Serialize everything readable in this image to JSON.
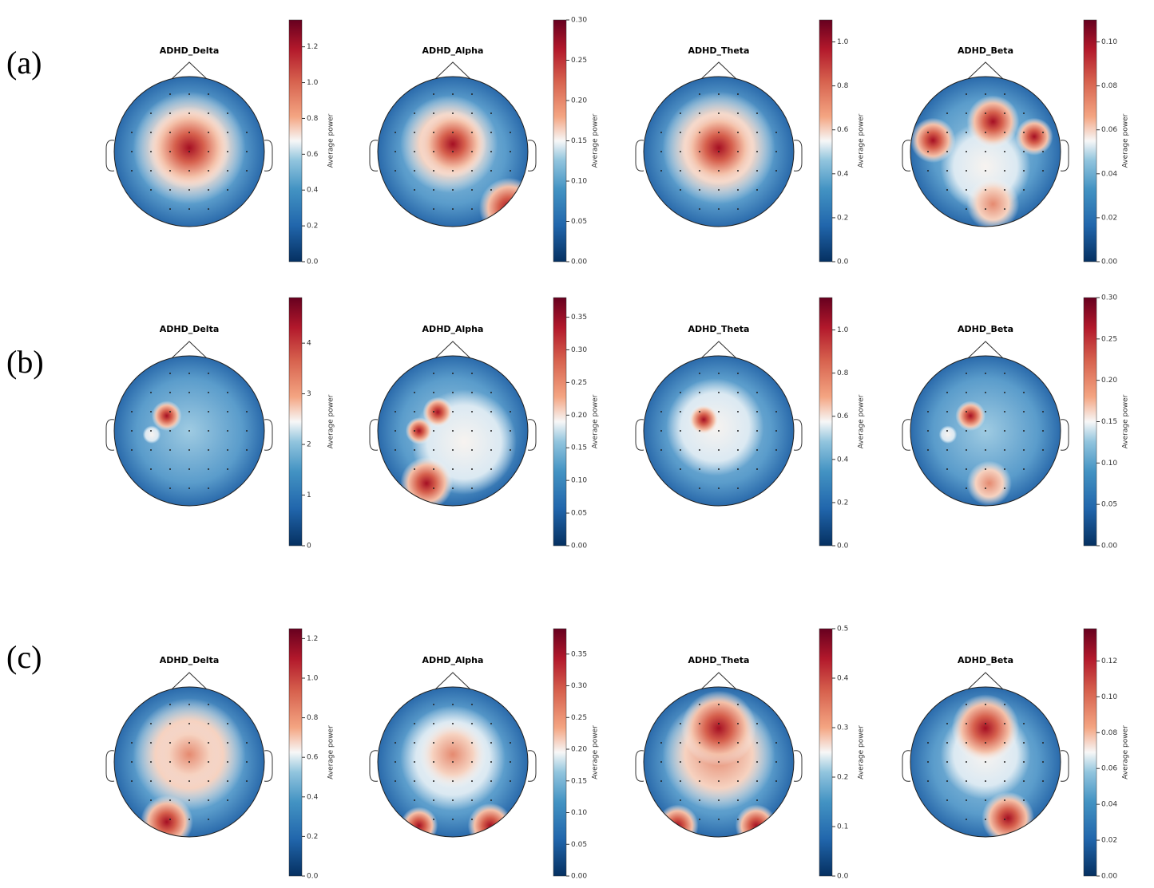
{
  "panel_labels": [
    "(a)",
    "(b)",
    "(c)"
  ],
  "chart_data": [
    {
      "type": "topomap",
      "title": "ADHD_Delta",
      "colorbar_label": "Average power",
      "ylim": [
        0,
        1.35
      ],
      "yticks": [
        {
          "value": 0,
          "label": "0.0"
        },
        0.2,
        0.4,
        0.6,
        0.8,
        {
          "value": 1,
          "label": "1.0"
        },
        1.2
      ]
    },
    {
      "type": "topomap",
      "title": "ADHD_Alpha",
      "colorbar_label": "Average power",
      "ylim": [
        0,
        0.3
      ],
      "yticks": [
        {
          "value": 0,
          "label": "0.00"
        },
        0.05,
        {
          "value": 0.1,
          "label": "0.10"
        },
        0.15,
        {
          "value": 0.2,
          "label": "0.20"
        },
        0.25,
        {
          "value": 0.3,
          "label": "0.30"
        }
      ]
    },
    {
      "type": "topomap",
      "title": "ADHD_Theta",
      "colorbar_label": "Average power",
      "ylim": [
        0,
        1.1
      ],
      "yticks": [
        {
          "value": 0,
          "label": "0.0"
        },
        0.2,
        0.4,
        0.6,
        0.8,
        {
          "value": 1,
          "label": "1.0"
        }
      ]
    },
    {
      "type": "topomap",
      "title": "ADHD_Beta",
      "colorbar_label": "Average power",
      "ylim": [
        0,
        0.11
      ],
      "yticks": [
        {
          "value": 0,
          "label": "0.00"
        },
        0.02,
        0.04,
        0.06,
        0.08,
        {
          "value": 0.1,
          "label": "0.10"
        }
      ]
    },
    {
      "type": "topomap",
      "title": "ADHD_Delta",
      "colorbar_label": "Average power",
      "ylim": [
        0,
        4.9
      ],
      "yticks": [
        0,
        1,
        2,
        3,
        4
      ]
    },
    {
      "type": "topomap",
      "title": "ADHD_Alpha",
      "colorbar_label": "Average power",
      "ylim": [
        0,
        0.38
      ],
      "yticks": [
        {
          "value": 0,
          "label": "0.00"
        },
        0.05,
        {
          "value": 0.1,
          "label": "0.10"
        },
        0.15,
        {
          "value": 0.2,
          "label": "0.20"
        },
        0.25,
        {
          "value": 0.3,
          "label": "0.30"
        },
        0.35
      ]
    },
    {
      "type": "topomap",
      "title": "ADHD_Theta",
      "colorbar_label": "Average power",
      "ylim": [
        0,
        1.15
      ],
      "yticks": [
        {
          "value": 0,
          "label": "0.0"
        },
        0.2,
        0.4,
        0.6,
        0.8,
        {
          "value": 1,
          "label": "1.0"
        }
      ]
    },
    {
      "type": "topomap",
      "title": "ADHD_Beta",
      "colorbar_label": "Average power",
      "ylim": [
        0,
        0.3
      ],
      "yticks": [
        {
          "value": 0,
          "label": "0.00"
        },
        0.05,
        {
          "value": 0.1,
          "label": "0.10"
        },
        0.15,
        {
          "value": 0.2,
          "label": "0.20"
        },
        0.25,
        {
          "value": 0.3,
          "label": "0.30"
        }
      ]
    },
    {
      "type": "topomap",
      "title": "ADHD_Delta",
      "colorbar_label": "Average power",
      "ylim": [
        0,
        1.25
      ],
      "yticks": [
        {
          "value": 0,
          "label": "0.0"
        },
        0.2,
        0.4,
        0.6,
        0.8,
        {
          "value": 1,
          "label": "1.0"
        },
        1.2
      ]
    },
    {
      "type": "topomap",
      "title": "ADHD_Alpha",
      "colorbar_label": "Average power",
      "ylim": [
        0,
        0.39
      ],
      "yticks": [
        {
          "value": 0,
          "label": "0.00"
        },
        0.05,
        {
          "value": 0.1,
          "label": "0.10"
        },
        0.15,
        {
          "value": 0.2,
          "label": "0.20"
        },
        0.25,
        {
          "value": 0.3,
          "label": "0.30"
        },
        0.35
      ]
    },
    {
      "type": "topomap",
      "title": "ADHD_Theta",
      "colorbar_label": "Average power",
      "ylim": [
        0,
        0.5
      ],
      "yticks": [
        {
          "value": 0,
          "label": "0.0"
        },
        0.1,
        0.2,
        0.3,
        0.4,
        0.5
      ]
    },
    {
      "type": "topomap",
      "title": "ADHD_Beta",
      "colorbar_label": "Average power",
      "ylim": [
        0,
        0.138
      ],
      "yticks": [
        {
          "value": 0,
          "label": "0.00"
        },
        0.02,
        0.04,
        0.06,
        0.08,
        {
          "value": 0.1,
          "label": "0.10"
        },
        0.12
      ]
    }
  ]
}
